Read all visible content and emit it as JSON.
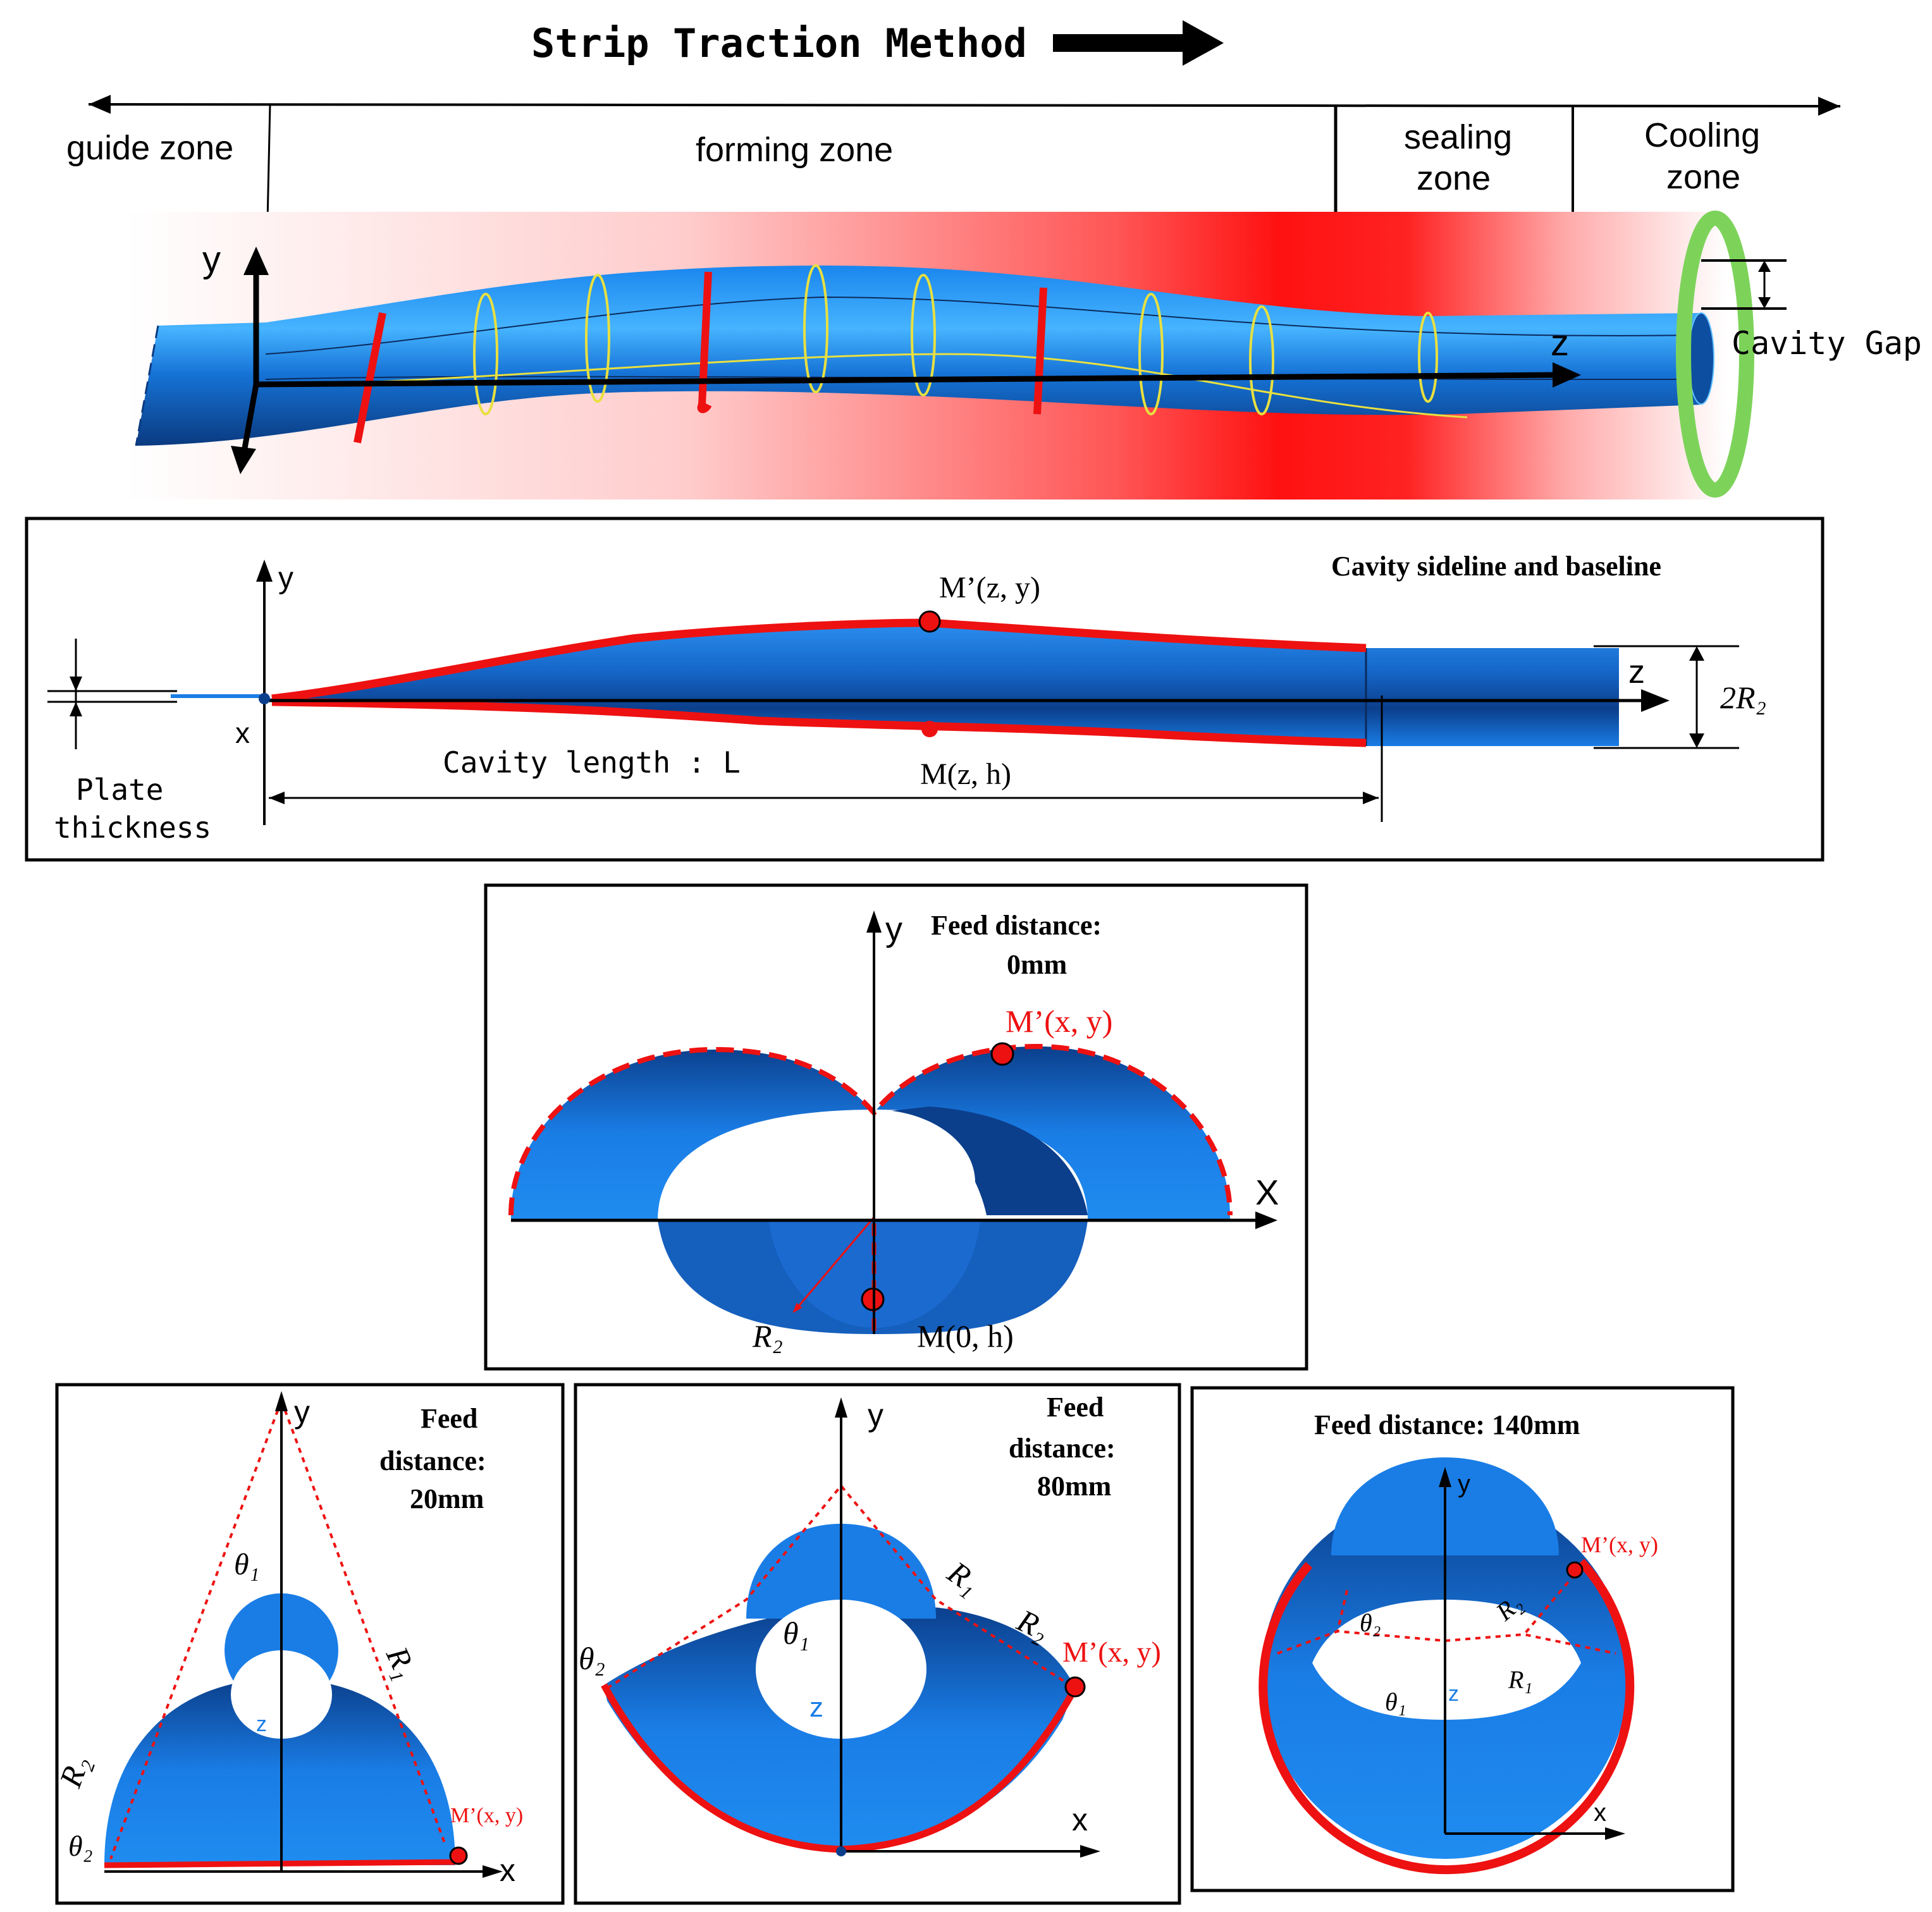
{
  "title": {
    "text": "Strip Traction Method"
  },
  "zones": {
    "guide": "guide zone",
    "forming": "forming zone",
    "sealing_1": "sealing",
    "sealing_2": "zone",
    "cooling_1": "Cooling",
    "cooling_2": "zone"
  },
  "top_axes": {
    "y": "y",
    "z": "z"
  },
  "cavity_gap": "Cavity Gap",
  "side_panel": {
    "title": "Cavity sideline and baseline",
    "m_prime": "M’(z,  y)",
    "m": "M(z,  h)",
    "axis_y": "y",
    "axis_x": "x",
    "axis_z": "z",
    "two_r2": "2R₂",
    "cavity_length": "Cavity length : L",
    "plate_thickness_1": "Plate",
    "plate_thickness_2": "thickness"
  },
  "feed0": {
    "label_1": "Feed distance:",
    "label_2": "0mm",
    "axis_y": "y",
    "axis_x": "X",
    "m_prime": "M’(x,  y)",
    "m": "M(0,  h)",
    "r2": "R₂"
  },
  "feed20": {
    "label_1": "Feed",
    "label_2": "distance:",
    "label_3": "20mm",
    "axis_y": "y",
    "axis_x": "x",
    "axis_z": "z",
    "theta1": "θ₁",
    "theta2": "θ₂",
    "r1": "R₁",
    "r2": "R₂",
    "m_prime": "M’(x,  y)"
  },
  "feed80": {
    "label_1": "Feed",
    "label_2": "distance:",
    "label_3": "80mm",
    "axis_y": "y",
    "axis_x": "x",
    "axis_z": "z",
    "theta1": "θ₁",
    "theta2": "θ₂",
    "r1": "R₁",
    "r2": "R₂",
    "m_prime": "M’(x,  y)"
  },
  "feed140": {
    "label": "Feed distance:  140mm",
    "axis_y": "y",
    "axis_x": "x",
    "axis_z": "z",
    "theta1": "θ₁",
    "theta2": "θ₂",
    "r1": "R₁",
    "r2": "R₂",
    "m_prime": "M’(x,  y)"
  },
  "colors": {
    "blue": "#1a7de6",
    "dark_blue": "#0b3f8c",
    "red": "#ee1111",
    "green": "#7dd35a",
    "yellow": "#e8e040"
  }
}
